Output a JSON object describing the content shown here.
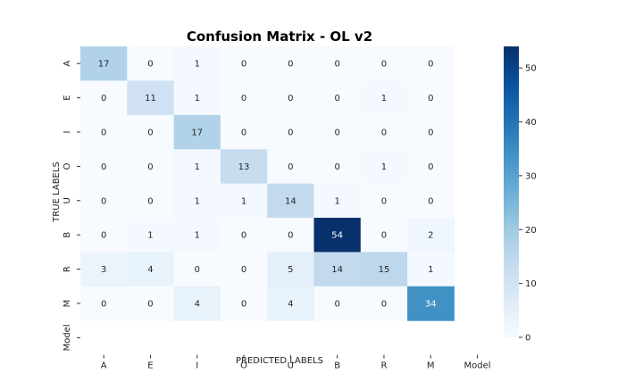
{
  "chart_data": {
    "type": "heatmap",
    "title": "Confusion Matrix - OL v2",
    "xlabel": "PREDICTED LABELS",
    "ylabel": "TRUE LABELS",
    "x_categories": [
      "A",
      "E",
      "I",
      "O",
      "U",
      "B",
      "R",
      "M",
      "Model"
    ],
    "y_categories": [
      "A",
      "E",
      "I",
      "O",
      "U",
      "B",
      "R",
      "M",
      "Model"
    ],
    "values": [
      [
        17,
        0,
        1,
        0,
        0,
        0,
        0,
        0,
        null
      ],
      [
        0,
        11,
        1,
        0,
        0,
        0,
        1,
        0,
        null
      ],
      [
        0,
        0,
        17,
        0,
        0,
        0,
        0,
        0,
        null
      ],
      [
        0,
        0,
        1,
        13,
        0,
        0,
        1,
        0,
        null
      ],
      [
        0,
        0,
        1,
        1,
        14,
        1,
        0,
        0,
        null
      ],
      [
        0,
        1,
        1,
        0,
        0,
        54,
        0,
        2,
        null
      ],
      [
        3,
        4,
        0,
        0,
        5,
        14,
        15,
        1,
        null
      ],
      [
        0,
        0,
        4,
        0,
        4,
        0,
        0,
        34,
        null
      ],
      [
        null,
        null,
        null,
        null,
        null,
        null,
        null,
        null,
        null
      ]
    ],
    "colorbar": {
      "vmin": 0,
      "vmax": 54,
      "ticks": [
        0,
        10,
        20,
        30,
        40,
        50
      ],
      "colormap": "Blues",
      "low_color": "#f7fbff",
      "high_color": "#08306b"
    },
    "legend": "colorbar-right"
  }
}
